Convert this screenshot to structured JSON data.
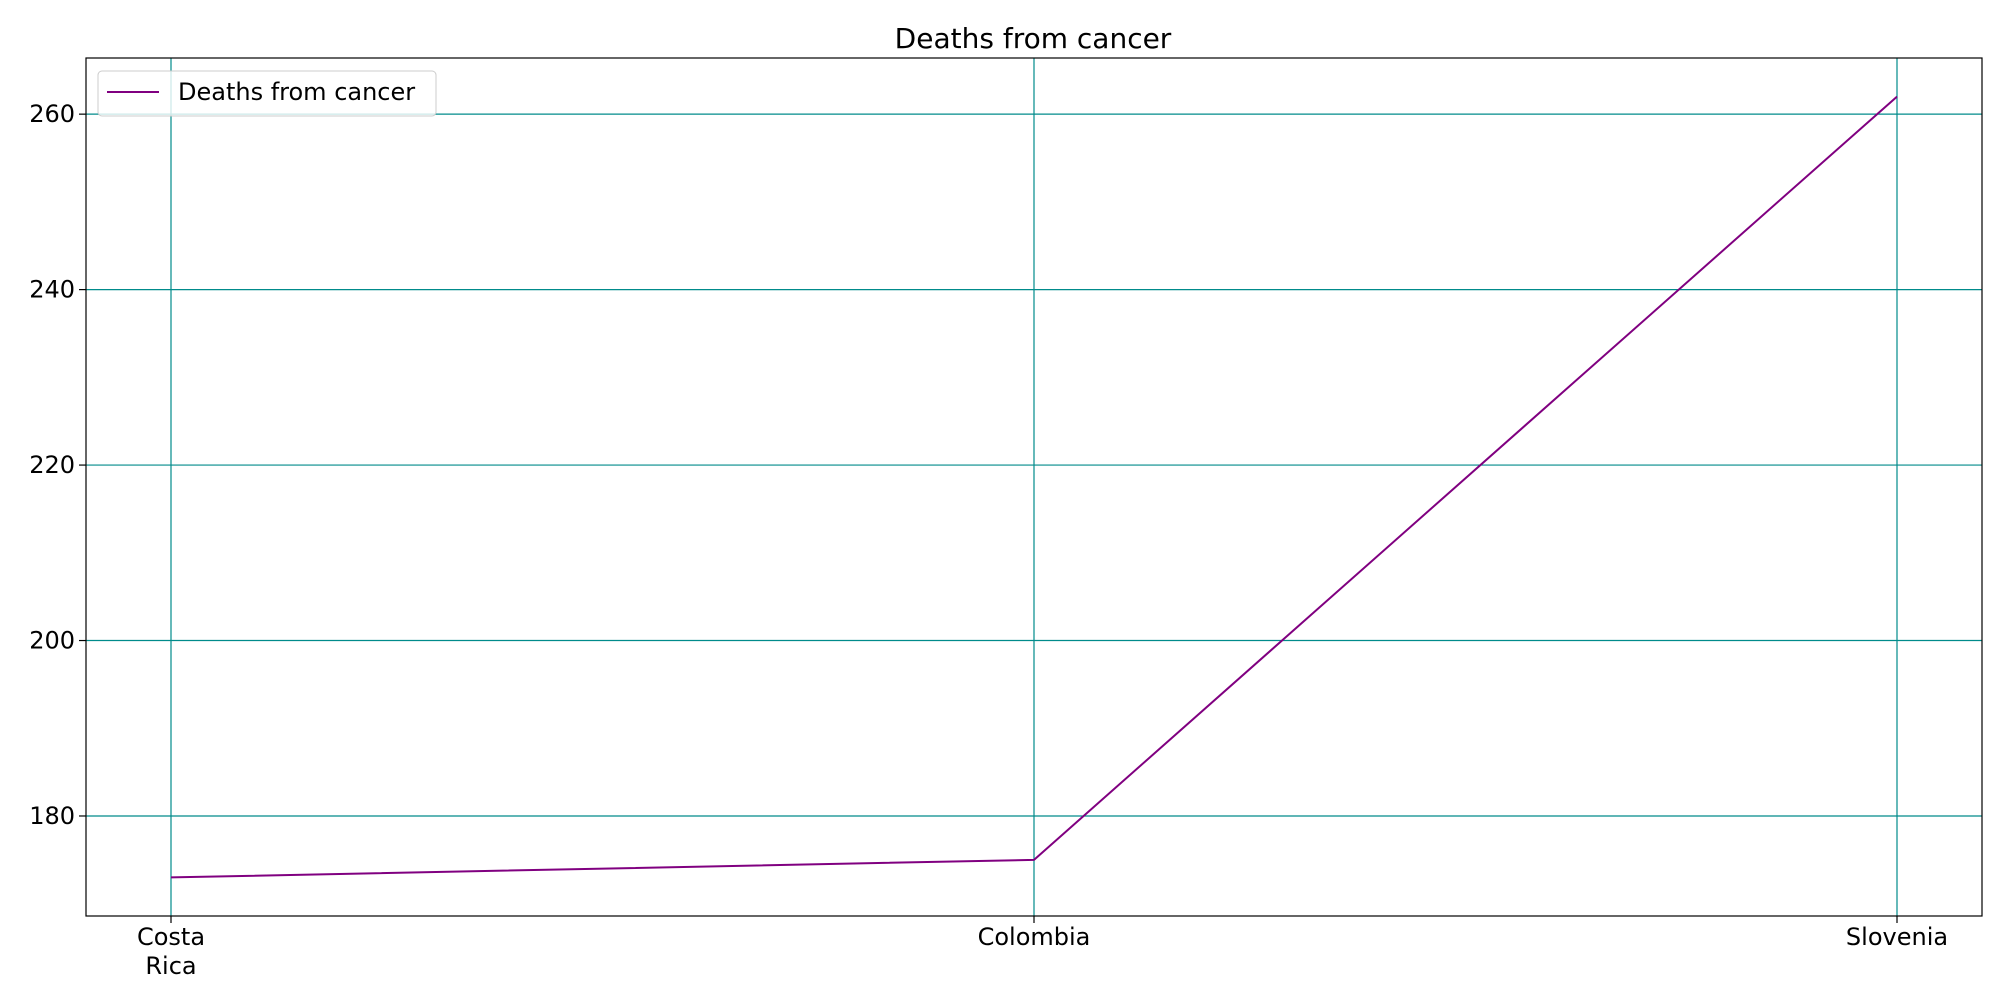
{
  "chart_data": {
    "type": "line",
    "title": "Deaths from cancer",
    "categories": [
      [
        "Costa",
        "Rica"
      ],
      [
        "Colombia"
      ],
      [
        "Slovenia"
      ]
    ],
    "series": [
      {
        "name": "Deaths from cancer",
        "color": "#800080",
        "values": [
          173,
          175,
          262
        ]
      }
    ],
    "xlabel": "",
    "ylabel": "",
    "ylim": [
      168.6,
      266.4
    ],
    "yticks": [
      180,
      200,
      220,
      240,
      260
    ],
    "grid": true,
    "grid_color": "#008b8b",
    "legend_position": "top-left"
  }
}
